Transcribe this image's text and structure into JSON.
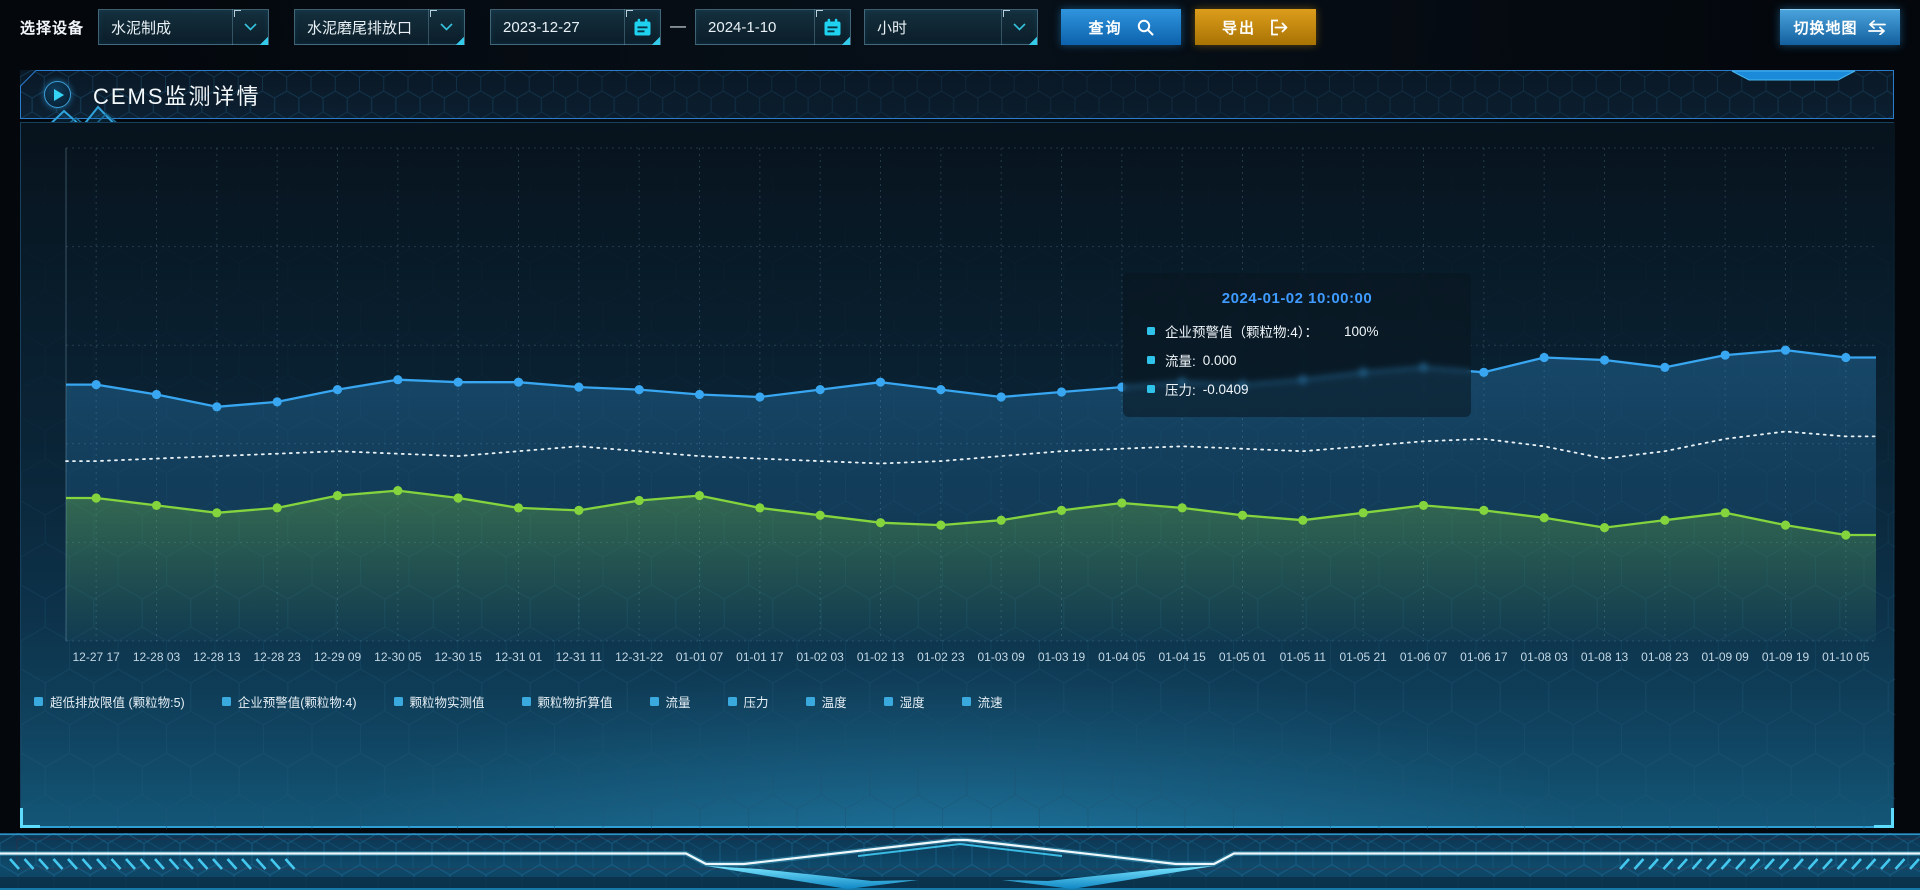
{
  "toolbar": {
    "device_label": "选择设备",
    "device_value": "水泥制成",
    "outlet_value": "水泥磨尾排放口",
    "date_start": "2023-12-27",
    "date_separator": "—",
    "date_end": "2024-1-10",
    "interval_value": "小时",
    "query_label": "查询",
    "export_label": "导出",
    "switch_map_label": "切换地图"
  },
  "panel": {
    "title": "CEMS监测详情"
  },
  "tooltip": {
    "title": "2024-01-02 10:00:00",
    "rows": [
      {
        "label": "企业预警值（颗粒物:4）：",
        "value": "100%"
      },
      {
        "label": "流量:",
        "value": "0.000"
      },
      {
        "label": "压力:",
        "value": "-0.0409"
      }
    ]
  },
  "icons": {
    "device_select": "chevron-down",
    "outlet_select": "chevron-down",
    "interval_select": "chevron-down",
    "start_date": "calendar",
    "end_date": "calendar",
    "query": "search",
    "export": "box-arrow-right",
    "switch_map": "swap-arrows",
    "panel_title": "play-circle"
  },
  "chart_data": {
    "type": "line",
    "title": "CEMS监测详情",
    "xlabel": "",
    "ylabel": "",
    "ylim": [
      0,
      100
    ],
    "grid": {
      "dashed": true,
      "h_divisions": 5
    },
    "legend_position": "bottom",
    "legend_marker_color": "#3aa9dd",
    "x_labels": [
      "12-27 17",
      "12-28 03",
      "12-28 13",
      "12-28 23",
      "12-29 09",
      "12-30 05",
      "12-30 15",
      "12-31 01",
      "12-31 11",
      "12-31-22",
      "01-01 07",
      "01-01 17",
      "01-02 03",
      "01-02 13",
      "01-02 23",
      "01-03 09",
      "01-03 19",
      "01-04 05",
      "01-04 15",
      "01-05 01",
      "01-05 11",
      "01-05 21",
      "01-06 07",
      "01-06 17",
      "01-08 03",
      "01-08 13",
      "01-08 23",
      "01-09 09",
      "01-09 19",
      "01-10 05"
    ],
    "legend": [
      "超低排放限值 (颗粒物:5)",
      "企业预警值(颗粒物:4)",
      "颗粒物实测值",
      "颗粒物折算值",
      "流量",
      "压力",
      "温度",
      "湿度",
      "流速"
    ],
    "series": [
      {
        "name": "blue-line",
        "color": "#38a6f0",
        "style": "solid",
        "dots": true,
        "area": true,
        "values": [
          52,
          50,
          47.5,
          48.5,
          51,
          53,
          52.5,
          52.5,
          51.5,
          51,
          50,
          49.5,
          51,
          52.5,
          51,
          49.5,
          50.5,
          51.5,
          52.5,
          52,
          53,
          54.5,
          55.5,
          54.5,
          57.5,
          57,
          55.5,
          58,
          59,
          57.5
        ]
      },
      {
        "name": "white-dotted-line",
        "color": "#e9f3f7",
        "style": "dotted",
        "dots": false,
        "area": false,
        "values": [
          36.5,
          37,
          37.5,
          38,
          38.5,
          38,
          37.5,
          38.5,
          39.5,
          38.5,
          37.5,
          37,
          36.5,
          36,
          36.5,
          37.5,
          38.5,
          39,
          39.5,
          39,
          38.5,
          39.5,
          40.5,
          41,
          39.5,
          37,
          38.5,
          41,
          42.5,
          41.5
        ]
      },
      {
        "name": "green-line",
        "color": "#84d43e",
        "style": "solid",
        "dots": true,
        "area": true,
        "values": [
          29,
          27.5,
          26,
          27,
          29.5,
          30.5,
          29,
          27,
          26.5,
          28.5,
          29.5,
          27,
          25.5,
          24,
          23.5,
          24.5,
          26.5,
          28,
          27,
          25.5,
          24.5,
          26,
          27.5,
          26.5,
          25,
          23,
          24.5,
          26,
          23.5,
          21.5
        ]
      }
    ]
  }
}
